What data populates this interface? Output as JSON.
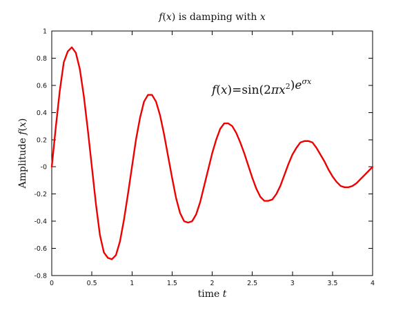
{
  "chart_data": {
    "type": "line",
    "title": "f(x) is damping with x",
    "xlabel": "time t",
    "ylabel": "Amplitude f(x)",
    "annotation": "f(x)=sin(2πx²)e^σx",
    "xlim": [
      0,
      4
    ],
    "ylim": [
      -0.8,
      1
    ],
    "x_ticks": [
      0,
      0.5,
      1,
      1.5,
      2,
      2.5,
      3,
      3.5,
      4
    ],
    "x_tick_labels": [
      "0",
      "0.5",
      "1",
      "1.5",
      "2",
      "2.5",
      "3",
      "3.5",
      "4"
    ],
    "y_ticks": [
      -0.8,
      -0.6,
      -0.4,
      -0.2,
      0,
      0.2,
      0.4,
      0.6,
      0.8,
      1
    ],
    "y_tick_labels": [
      "-0.8",
      "-0.6",
      "-0.4",
      "-0.2",
      "-0",
      "0.2",
      "0.4",
      "0.6",
      "0.8",
      "1"
    ],
    "grid": false,
    "legend": "none",
    "series": [
      {
        "color": "#ee0000",
        "x": [
          0,
          0.05,
          0.1,
          0.15,
          0.2,
          0.25,
          0.3,
          0.35,
          0.4,
          0.45,
          0.5,
          0.55,
          0.6,
          0.65,
          0.7,
          0.75,
          0.8,
          0.85,
          0.9,
          0.95,
          1.0,
          1.05,
          1.1,
          1.15,
          1.2,
          1.25,
          1.3,
          1.35,
          1.4,
          1.45,
          1.5,
          1.55,
          1.6,
          1.65,
          1.7,
          1.75,
          1.8,
          1.85,
          1.9,
          1.95,
          2.0,
          2.05,
          2.1,
          2.15,
          2.2,
          2.25,
          2.3,
          2.35,
          2.4,
          2.45,
          2.5,
          2.55,
          2.6,
          2.65,
          2.7,
          2.75,
          2.8,
          2.85,
          2.9,
          2.95,
          3.0,
          3.05,
          3.1,
          3.15,
          3.2,
          3.25,
          3.3,
          3.35,
          3.4,
          3.45,
          3.5,
          3.55,
          3.6,
          3.65,
          3.7,
          3.75,
          3.8,
          3.85,
          3.9,
          3.95,
          4.0
        ],
        "y": [
          0,
          0.29,
          0.56,
          0.77,
          0.85,
          0.88,
          0.84,
          0.72,
          0.52,
          0.27,
          0,
          -0.27,
          -0.5,
          -0.63,
          -0.67,
          -0.68,
          -0.65,
          -0.55,
          -0.39,
          -0.2,
          0,
          0.2,
          0.36,
          0.48,
          0.53,
          0.53,
          0.48,
          0.38,
          0.24,
          0.08,
          -0.08,
          -0.23,
          -0.34,
          -0.4,
          -0.41,
          -0.4,
          -0.35,
          -0.26,
          -0.14,
          -0.02,
          0.1,
          0.2,
          0.28,
          0.32,
          0.32,
          0.3,
          0.25,
          0.18,
          0.1,
          0.01,
          -0.08,
          -0.16,
          -0.22,
          -0.25,
          -0.25,
          -0.24,
          -0.2,
          -0.14,
          -0.06,
          0.02,
          0.09,
          0.14,
          0.18,
          0.19,
          0.19,
          0.18,
          0.14,
          0.09,
          0.04,
          -0.02,
          -0.07,
          -0.11,
          -0.14,
          -0.15,
          -0.15,
          -0.14,
          -0.12,
          -0.09,
          -0.06,
          -0.03,
          0
        ]
      }
    ]
  }
}
